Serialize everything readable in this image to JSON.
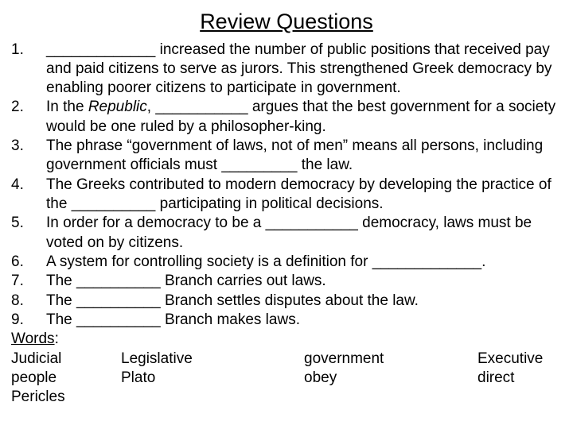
{
  "title": "Review Questions",
  "questions": [
    {
      "n": "1.",
      "text": "_____________ increased the number of public positions that received pay and paid citizens to serve as jurors. This strengthened Greek democracy by enabling poorer citizens to participate in government."
    },
    {
      "n": "2.",
      "pre": "In the ",
      "italic": "Republic",
      "post": ", ___________ argues that the best government for a society would be one ruled by a philosopher-king."
    },
    {
      "n": "3.",
      "text": "The phrase “government of laws, not of men” means all persons, including government officials must _________ the law."
    },
    {
      "n": "4.",
      "text": "The Greeks contributed to modern democracy by developing the practice of the __________ participating in political decisions."
    },
    {
      "n": "5.",
      "text": "In order for a democracy to be a ___________ democracy, laws must be voted on by citizens."
    },
    {
      "n": "6.",
      "text": "A system for controlling society is a definition for _____________."
    },
    {
      "n": "7.",
      "text": "The __________ Branch carries out laws."
    },
    {
      "n": "8.",
      "text": "The __________ Branch settles disputes about the law."
    },
    {
      "n": "9.",
      "text": "The __________ Branch makes laws."
    }
  ],
  "wordsLabel": "Words",
  "wordbank": {
    "r1": {
      "c1": "Judicial",
      "c2": "Legislative",
      "c3": "government",
      "c4": "Executive"
    },
    "r2": {
      "c1": "people",
      "c2": "Plato",
      "c3": "obey",
      "c4": "direct"
    },
    "r3": {
      "c1": "Pericles",
      "c2": "",
      "c3": "",
      "c4": ""
    }
  }
}
